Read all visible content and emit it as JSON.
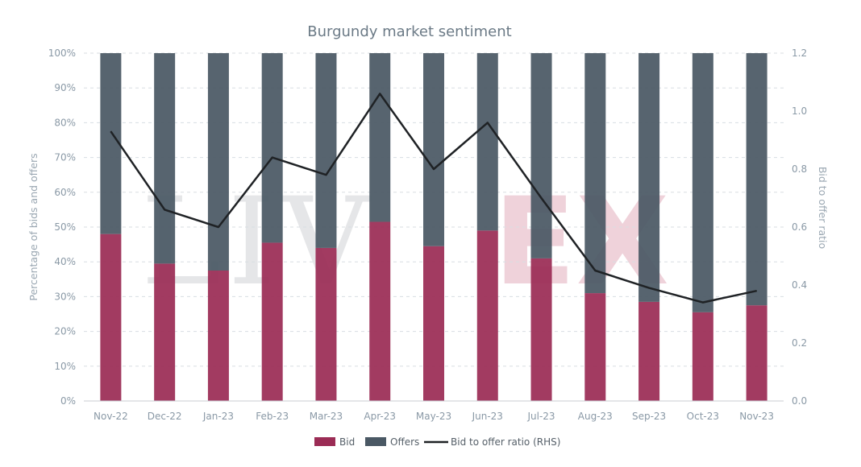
{
  "chart_data": {
    "type": "bar",
    "subtype": "stacked-percent-with-line",
    "title": "Burgundy market sentiment",
    "categories": [
      "Nov-22",
      "Dec-22",
      "Jan-23",
      "Feb-23",
      "Mar-23",
      "Apr-23",
      "May-23",
      "Jun-23",
      "Jul-23",
      "Aug-23",
      "Sep-23",
      "Oct-23",
      "Nov-23"
    ],
    "series": [
      {
        "name": "Bid",
        "axis": "left",
        "kind": "bar",
        "color": "#9b2c55",
        "values": [
          48,
          39.5,
          37.5,
          45.5,
          44,
          51.5,
          44.5,
          49,
          41,
          31,
          28.5,
          25.5,
          27.5
        ]
      },
      {
        "name": "Offers",
        "axis": "left",
        "kind": "bar",
        "color": "#4a5864",
        "values": [
          52,
          60.5,
          62.5,
          54.5,
          56,
          48.5,
          55.5,
          51,
          59,
          69,
          71.5,
          74.5,
          72.5
        ]
      },
      {
        "name": "Bid to offer ratio (RHS)",
        "axis": "right",
        "kind": "line",
        "color": "#1f2225",
        "values": [
          0.93,
          0.66,
          0.6,
          0.84,
          0.78,
          1.06,
          0.8,
          0.96,
          0.7,
          0.45,
          0.39,
          0.34,
          0.38
        ]
      }
    ],
    "ylabel": "Percentage of bids and offers",
    "y2label": "Bid to offer ratio",
    "ylim": [
      0,
      100
    ],
    "y2lim": [
      0,
      1.2
    ],
    "yticks": [
      "0%",
      "10%",
      "20%",
      "30%",
      "40%",
      "50%",
      "60%",
      "70%",
      "80%",
      "90%",
      "100%"
    ],
    "y2ticks": [
      "0.0",
      "0.2",
      "0.4",
      "0.6",
      "0.8",
      "1.0",
      "1.2"
    ],
    "grid": true,
    "legend_position": "bottom-center",
    "watermark": "LIV-EX"
  }
}
